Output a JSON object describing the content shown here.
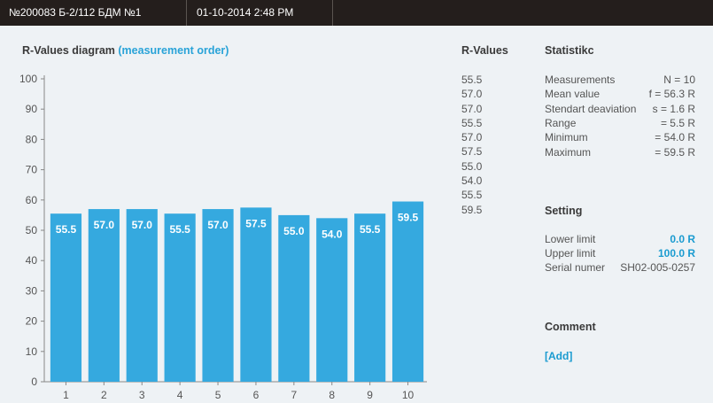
{
  "header": {
    "device_id": "№200083 Б-2/112 БДМ №1",
    "datetime": "01-10-2014  2:48 PM"
  },
  "diagram": {
    "title_main": "R-Values diagram",
    "title_sub": "(measurement order)"
  },
  "chart_data": {
    "type": "bar",
    "categories": [
      "1",
      "2",
      "3",
      "4",
      "5",
      "6",
      "7",
      "8",
      "9",
      "10"
    ],
    "values": [
      55.5,
      57.0,
      57.0,
      55.5,
      57.0,
      57.5,
      55.0,
      54.0,
      55.5,
      59.5
    ],
    "value_labels": [
      "55.5",
      "57.0",
      "57.0",
      "55.5",
      "57.0",
      "57.5",
      "55.0",
      "54.0",
      "55.5",
      "59.5"
    ],
    "title": "R-Values diagram (measurement order)",
    "ylim": [
      0,
      100
    ],
    "yticks": [
      0,
      10,
      20,
      30,
      40,
      50,
      60,
      70,
      80,
      90,
      100
    ],
    "bar_color": "#35a9df",
    "grid": false
  },
  "rvalues": {
    "title": "R-Values",
    "items": [
      "55.5",
      "57.0",
      "57.0",
      "55.5",
      "57.0",
      "57.5",
      "55.0",
      "54.0",
      "55.5",
      "59.5"
    ]
  },
  "statistics": {
    "title": "Statistikc",
    "rows": [
      {
        "label": "Measurements",
        "value": "N = 10"
      },
      {
        "label": "Mean value",
        "value": "f = 56.3 R"
      },
      {
        "label": "Stendart deaviation",
        "value": "s = 1.6 R"
      },
      {
        "label": "Range",
        "value": "= 5.5 R"
      },
      {
        "label": "Minimum",
        "value": "= 54.0 R"
      },
      {
        "label": "Maximum",
        "value": "= 59.5 R"
      }
    ]
  },
  "setting": {
    "title": "Setting",
    "lower_label": "Lower limit",
    "lower_value": "0.0 R",
    "upper_label": "Upper limit",
    "upper_value": "100.0 R",
    "serial_label": "Serial numer",
    "serial_value": "SH02-005-0257"
  },
  "comment": {
    "title": "Comment",
    "add_label": "[Add]"
  },
  "colors": {
    "header_bg": "#241e1c",
    "accent": "#29a3d8",
    "page_bg": "#eef2f5"
  }
}
